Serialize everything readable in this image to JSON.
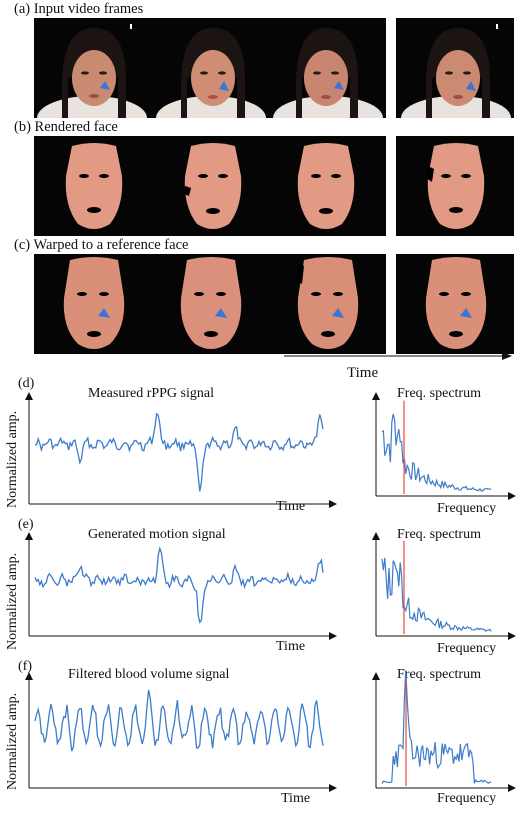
{
  "panels": {
    "a": {
      "caption": "(a) Input video frames"
    },
    "b": {
      "caption": "(b) Rendered face"
    },
    "c": {
      "caption": "(c) Warped to a reference face"
    },
    "time_label": "Time"
  },
  "signals": [
    {
      "tag": "(d)",
      "title": "Measured rPPG signal",
      "ylabel": "Normalized amp.",
      "xlabel": "Time",
      "spectrum_title": "Freq. spectrum",
      "spectrum_xlabel": "Frequency"
    },
    {
      "tag": "(e)",
      "title": "Generated motion signal",
      "ylabel": "Normalized amp.",
      "xlabel": "Time",
      "spectrum_title": "Freq. spectrum",
      "spectrum_xlabel": "Frequency"
    },
    {
      "tag": "(f)",
      "title": "Filtered blood volume signal",
      "ylabel": "Normalized amp.",
      "xlabel": "Time",
      "spectrum_title": "Freq. spectrum",
      "spectrum_xlabel": "Frequency"
    }
  ],
  "colors": {
    "signal": "#3d7cc9",
    "peak_marker": "#e8473f",
    "skin": "#e39a84",
    "triangle": "#3b74d8"
  }
}
